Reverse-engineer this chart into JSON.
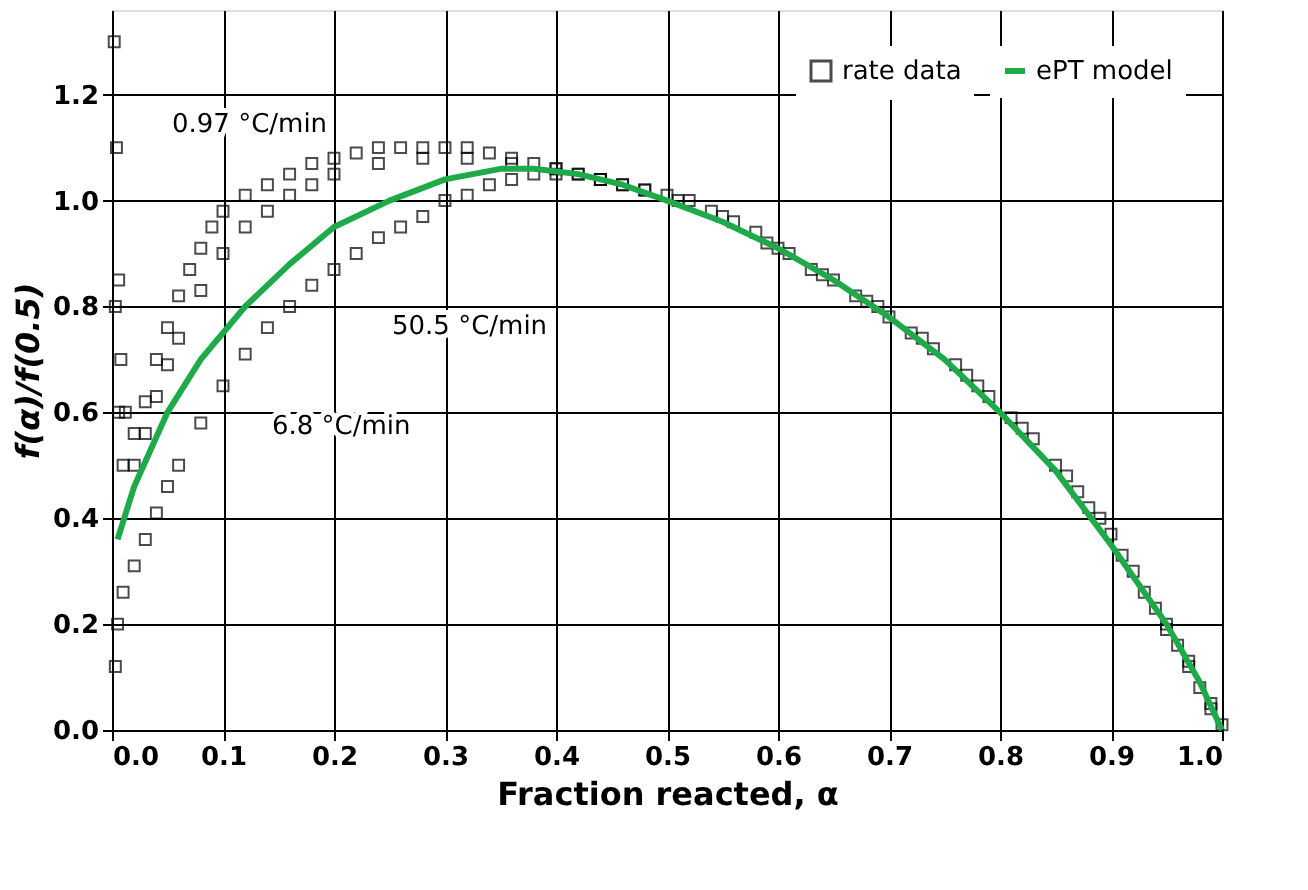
{
  "chart_data": {
    "type": "scatter",
    "xlabel": "Fraction reacted, α",
    "ylabel": "f(α)/f(0.5)",
    "xlim": [
      0,
      1.0
    ],
    "ylim": [
      0,
      1.36
    ],
    "xticks": [
      {
        "value": 0,
        "label": "0.0"
      },
      0.1,
      0.2,
      0.3,
      0.4,
      0.5,
      0.6,
      0.7,
      0.8,
      0.9,
      {
        "value": 1,
        "label": "1.0"
      }
    ],
    "yticks": [
      {
        "value": 0,
        "label": "0.0"
      },
      0.2,
      0.4,
      0.6,
      0.8,
      {
        "value": 1,
        "label": "1.0"
      },
      1.2
    ],
    "grid": true,
    "legend": "top right",
    "series": [
      {
        "name": "rate data",
        "marker": "square",
        "color": "#000000",
        "x": [
          0.002,
          0.004,
          0.006,
          0.008,
          0.012,
          0.02,
          0.03,
          0.04,
          0.05,
          0.06,
          0.07,
          0.08,
          0.09,
          0.1,
          0.12,
          0.14,
          0.16,
          0.18,
          0.2,
          0.22,
          0.24,
          0.26,
          0.28,
          0.3,
          0.32,
          0.34,
          0.36,
          0.38,
          0.4,
          0.42,
          0.44,
          0.46,
          0.48,
          0.52,
          0.55,
          0.58,
          0.61,
          0.64,
          0.67,
          0.7,
          0.73,
          0.76,
          0.79,
          0.82,
          0.85,
          0.88,
          0.91,
          0.93,
          0.95,
          0.97,
          0.99,
          1.0,
          0.003,
          0.006,
          0.01,
          0.02,
          0.03,
          0.04,
          0.05,
          0.06,
          0.08,
          0.1,
          0.12,
          0.14,
          0.16,
          0.18,
          0.2,
          0.24,
          0.28,
          0.32,
          0.36,
          0.4,
          0.44,
          0.48,
          0.51,
          0.56,
          0.6,
          0.65,
          0.69,
          0.74,
          0.78,
          0.83,
          0.87,
          0.9,
          0.94,
          0.96,
          0.98,
          0.003,
          0.005,
          0.01,
          0.02,
          0.03,
          0.04,
          0.05,
          0.06,
          0.08,
          0.1,
          0.12,
          0.14,
          0.16,
          0.18,
          0.2,
          0.22,
          0.24,
          0.26,
          0.28,
          0.3,
          0.32,
          0.34,
          0.36,
          0.38,
          0.4,
          0.42,
          0.44,
          0.46,
          0.5,
          0.54,
          0.59,
          0.63,
          0.68,
          0.72,
          0.77,
          0.81,
          0.86,
          0.89,
          0.92,
          0.95,
          0.97,
          0.99
        ],
        "values": [
          1.3,
          1.1,
          0.85,
          0.7,
          0.6,
          0.56,
          0.62,
          0.7,
          0.76,
          0.82,
          0.87,
          0.91,
          0.95,
          0.98,
          1.01,
          1.03,
          1.05,
          1.07,
          1.08,
          1.09,
          1.1,
          1.1,
          1.1,
          1.1,
          1.1,
          1.09,
          1.08,
          1.07,
          1.06,
          1.05,
          1.04,
          1.03,
          1.02,
          1.0,
          0.97,
          0.94,
          0.9,
          0.86,
          0.82,
          0.78,
          0.74,
          0.69,
          0.63,
          0.57,
          0.5,
          0.42,
          0.33,
          0.26,
          0.19,
          0.12,
          0.04,
          0.01,
          0.8,
          0.6,
          0.5,
          0.5,
          0.56,
          0.63,
          0.69,
          0.74,
          0.83,
          0.9,
          0.95,
          0.98,
          1.01,
          1.03,
          1.05,
          1.07,
          1.08,
          1.08,
          1.07,
          1.06,
          1.04,
          1.02,
          1.0,
          0.96,
          0.91,
          0.85,
          0.8,
          0.72,
          0.65,
          0.55,
          0.45,
          0.37,
          0.23,
          0.16,
          0.08,
          0.12,
          0.2,
          0.26,
          0.31,
          0.36,
          0.41,
          0.46,
          0.5,
          0.58,
          0.65,
          0.71,
          0.76,
          0.8,
          0.84,
          0.87,
          0.9,
          0.93,
          0.95,
          0.97,
          1.0,
          1.01,
          1.03,
          1.04,
          1.05,
          1.05,
          1.05,
          1.04,
          1.03,
          1.01,
          0.98,
          0.92,
          0.87,
          0.81,
          0.75,
          0.67,
          0.59,
          0.48,
          0.4,
          0.3,
          0.2,
          0.13,
          0.05
        ]
      },
      {
        "name": "ePT model",
        "type": "line",
        "line_style": "solid",
        "color": "#1faa4a",
        "x": [
          0.005,
          0.02,
          0.05,
          0.08,
          0.12,
          0.16,
          0.2,
          0.25,
          0.3,
          0.35,
          0.38,
          0.42,
          0.46,
          0.5,
          0.55,
          0.6,
          0.65,
          0.7,
          0.75,
          0.8,
          0.85,
          0.9,
          0.95,
          0.98,
          1.0
        ],
        "values": [
          0.36,
          0.46,
          0.6,
          0.7,
          0.8,
          0.88,
          0.95,
          1.0,
          1.04,
          1.06,
          1.06,
          1.05,
          1.03,
          1.0,
          0.96,
          0.91,
          0.85,
          0.78,
          0.7,
          0.6,
          0.49,
          0.35,
          0.2,
          0.09,
          0.0
        ]
      }
    ],
    "annotations": [
      "0.97 °C/min",
      "50.5 °C/min",
      "6.8 °C/min"
    ]
  }
}
